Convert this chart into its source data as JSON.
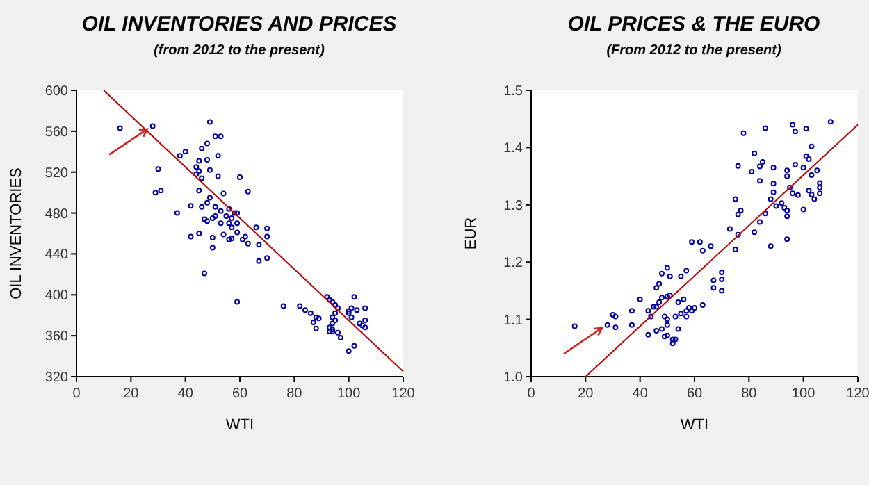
{
  "chart_data": [
    {
      "type": "scatter",
      "title": "OIL INVENTORIES AND PRICES",
      "subtitle": "(from 2012 to the present)",
      "xlabel": "WTI",
      "ylabel": "OIL INVENTORIES",
      "xlim": [
        0,
        120
      ],
      "ylim": [
        320,
        600
      ],
      "xticks": [
        0,
        20,
        40,
        60,
        80,
        100,
        120
      ],
      "yticks": [
        320,
        360,
        400,
        440,
        480,
        520,
        560,
        600
      ],
      "grid": false,
      "marker": "circle",
      "series": [
        {
          "color": "#0000a0",
          "x": [
            16,
            28,
            49,
            51,
            53,
            48,
            46,
            40,
            38,
            52,
            48,
            45,
            30,
            44,
            45,
            49,
            52,
            60,
            44,
            46,
            29,
            31,
            45,
            54,
            63,
            49,
            42,
            48,
            46,
            51,
            37,
            53,
            56,
            58,
            59,
            55,
            57,
            47,
            48,
            50,
            51,
            53,
            56,
            59,
            57,
            66,
            70,
            59,
            45,
            42,
            54,
            50,
            56,
            57,
            62,
            61,
            63,
            67,
            70,
            50,
            70,
            67,
            47,
            59,
            76,
            82,
            84,
            86,
            88,
            89,
            87,
            88,
            92,
            93,
            94,
            95,
            96,
            95,
            94,
            95,
            94,
            93,
            94,
            93,
            94,
            96,
            97,
            100,
            102,
            101,
            100,
            101,
            102,
            103,
            104,
            105,
            106,
            106,
            106,
            100
          ],
          "values": [
            563,
            565,
            569,
            555,
            555,
            548,
            543,
            540,
            536,
            536,
            532,
            531,
            523,
            525,
            521,
            522,
            516,
            515,
            518,
            514,
            500,
            502,
            502,
            499,
            501,
            495,
            487,
            490,
            486,
            486,
            480,
            482,
            484,
            480,
            480,
            477,
            475,
            474,
            472,
            475,
            477,
            470,
            470,
            470,
            466,
            466,
            465,
            461,
            460,
            457,
            459,
            456,
            454,
            455,
            457,
            454,
            450,
            449,
            457,
            446,
            436,
            433,
            421,
            393,
            389,
            389,
            385,
            382,
            378,
            377,
            373,
            367,
            398,
            395,
            393,
            390,
            387,
            382,
            378,
            375,
            372,
            368,
            366,
            364,
            364,
            363,
            358,
            345,
            350,
            387,
            384,
            378,
            398,
            385,
            372,
            370,
            387,
            375,
            368,
            382
          ]
        },
        {
          "type": "line",
          "color": "#c00000",
          "marker": "none",
          "x": [
            10,
            120
          ],
          "values": [
            600,
            325
          ]
        }
      ]
    },
    {
      "type": "scatter",
      "title": "OIL PRICES & THE EURO",
      "subtitle": "(From 2012 to the present)",
      "xlabel": "WTI",
      "ylabel": "EUR",
      "xlim": [
        0,
        120
      ],
      "ylim": [
        1.0,
        1.5
      ],
      "xticks": [
        0,
        20,
        40,
        60,
        80,
        100,
        120
      ],
      "yticks": [
        {
          "value": 1.0,
          "label": "1.0"
        },
        1.1,
        1.2,
        1.3,
        1.4,
        {
          "value": 1.5,
          "label": "1.5"
        }
      ],
      "grid": false,
      "marker": "circle",
      "series": [
        {
          "color": "#0000a0",
          "x": [
            16,
            28,
            30,
            31,
            31,
            37,
            37,
            40,
            43,
            43,
            44,
            45,
            46,
            47,
            46,
            47,
            48,
            50,
            51,
            48,
            50,
            51,
            49,
            50,
            50,
            49,
            50,
            46,
            48,
            52,
            52,
            53,
            54,
            53,
            55,
            54,
            56,
            57,
            58,
            59,
            60,
            57,
            55,
            57,
            59,
            62,
            63,
            66,
            63,
            67,
            67,
            70,
            70,
            70,
            73,
            75,
            75,
            76,
            76,
            77,
            76,
            78,
            81,
            82,
            82,
            84,
            84,
            84,
            85,
            86,
            86,
            88,
            88,
            89,
            89,
            89,
            90,
            92,
            93,
            94,
            94,
            94,
            94,
            94,
            95,
            96,
            96,
            97,
            97,
            98,
            100,
            100,
            101,
            101,
            102,
            102,
            103,
            103,
            103,
            104,
            105,
            106,
            106,
            106,
            110
          ],
          "values": [
            1.088,
            1.09,
            1.108,
            1.105,
            1.086,
            1.09,
            1.115,
            1.135,
            1.073,
            1.115,
            1.105,
            1.122,
            1.122,
            1.13,
            1.155,
            1.162,
            1.18,
            1.19,
            1.175,
            1.138,
            1.14,
            1.142,
            1.105,
            1.1,
            1.09,
            1.07,
            1.072,
            1.08,
            1.083,
            1.058,
            1.065,
            1.065,
            1.083,
            1.105,
            1.11,
            1.13,
            1.135,
            1.115,
            1.12,
            1.115,
            1.12,
            1.105,
            1.175,
            1.185,
            1.235,
            1.235,
            1.22,
            1.228,
            1.125,
            1.168,
            1.155,
            1.182,
            1.17,
            1.15,
            1.258,
            1.31,
            1.222,
            1.248,
            1.283,
            1.29,
            1.368,
            1.425,
            1.358,
            1.39,
            1.252,
            1.27,
            1.342,
            1.367,
            1.375,
            1.434,
            1.285,
            1.228,
            1.31,
            1.322,
            1.365,
            1.337,
            1.298,
            1.303,
            1.295,
            1.29,
            1.28,
            1.35,
            1.24,
            1.36,
            1.33,
            1.32,
            1.44,
            1.428,
            1.37,
            1.317,
            1.292,
            1.365,
            1.385,
            1.433,
            1.38,
            1.325,
            1.402,
            1.352,
            1.318,
            1.31,
            1.36,
            1.338,
            1.33,
            1.32,
            1.445
          ]
        },
        {
          "type": "line",
          "color": "#c00000",
          "marker": "none",
          "x": [
            20,
            120
          ],
          "values": [
            1.0,
            1.44
          ]
        }
      ]
    }
  ]
}
